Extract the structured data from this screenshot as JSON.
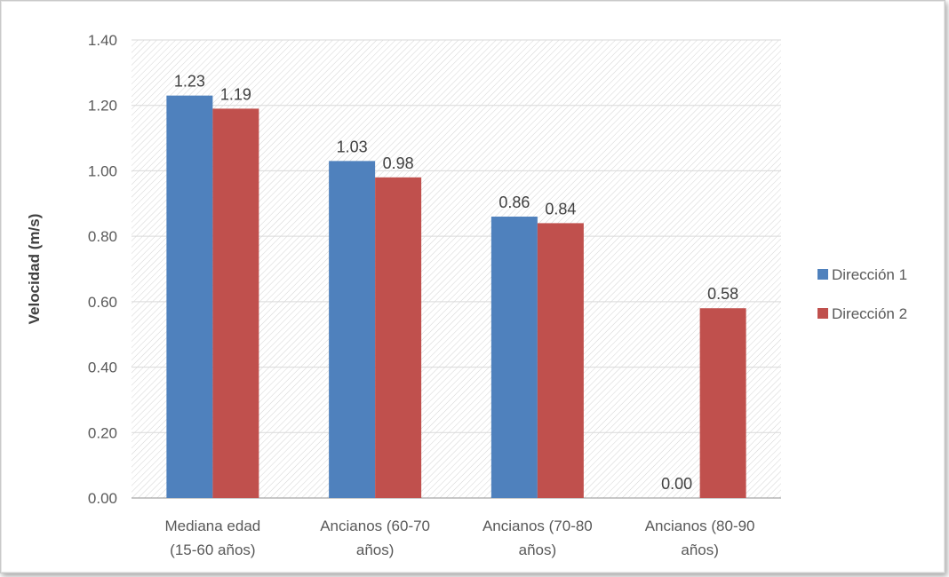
{
  "chart_data": {
    "type": "bar",
    "categories": [
      [
        "Mediana edad",
        "(15-60 años)"
      ],
      [
        "Ancianos (60-70",
        "años)"
      ],
      [
        "Ancianos (70-80",
        "años)"
      ],
      [
        "Ancianos (80-90",
        "años)"
      ]
    ],
    "series": [
      {
        "name": "Dirección 1",
        "color": "#4F81BD",
        "values": [
          1.23,
          1.03,
          0.86,
          0.0
        ],
        "labels": [
          "1.23",
          "1.03",
          "0.86",
          "0.00"
        ]
      },
      {
        "name": "Dirección 2",
        "color": "#C0504D",
        "values": [
          1.19,
          0.98,
          0.84,
          0.58
        ],
        "labels": [
          "1.19",
          "0.98",
          "0.84",
          "0.58"
        ]
      }
    ],
    "title": "",
    "xlabel": "",
    "ylabel": "Velocidad (m/s)",
    "ylim": [
      0,
      1.4
    ],
    "yticks": [
      "0.00",
      "0.20",
      "0.40",
      "0.60",
      "0.80",
      "1.00",
      "1.20",
      "1.40"
    ],
    "grid": true,
    "legend_position": "right"
  }
}
